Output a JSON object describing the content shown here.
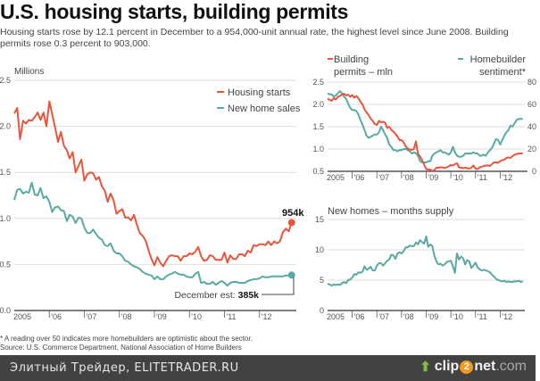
{
  "title": "U.S. housing starts, building permits",
  "subtitle": "Housing starts rose by 12.1 percent in December to a 954,000-unit annual rate, the highest level since June 2008. Building permits rose 0.3 percent to 903,000.",
  "footnote": {
    "line1": "* A reading over 50 indicates more homebuilders are optimistic about the sector.",
    "line2": "Source: U.S. Commerce Department, National Association of Home Builders"
  },
  "watermark": {
    "text": "Элитный Трейдер, ELITETRADER.RU",
    "logo_pre": "clip",
    "logo_num": "2",
    "logo_post": "net",
    "logo_tld": ".com",
    "logo_icon": "up-arrow-icon"
  },
  "colors": {
    "red": "#e8553c",
    "teal": "#5aa9a3"
  },
  "chart_data": [
    {
      "id": "main",
      "type": "line",
      "ylabel": "Millions",
      "ylim": [
        0,
        2.5
      ],
      "yticks": [
        "0.0",
        "0.5",
        "1.0",
        "1.5",
        "2.0",
        "2.5"
      ],
      "xticks": [
        "2005",
        "'06",
        "'07",
        "'08",
        "'09",
        "'10",
        "'11",
        "'12"
      ],
      "xrange": [
        2005.0,
        2013.0
      ],
      "legend": [
        "Housing starts",
        "New home sales"
      ],
      "legend_position": "top-right",
      "annotations": {
        "end_red": "954k",
        "end_teal_prefix": "December est: ",
        "end_teal_value": "385k"
      },
      "series": [
        {
          "name": "Housing starts",
          "color": "#e8553c",
          "values": [
            2.14,
            2.2,
            1.86,
            2.06,
            2.03,
            2.07,
            2.06,
            2.1,
            2.15,
            2.07,
            2.15,
            2.0,
            2.27,
            2.13,
            1.98,
            1.83,
            1.94,
            1.79,
            1.74,
            1.65,
            1.72,
            1.5,
            1.57,
            1.64,
            1.41,
            1.48,
            1.5,
            1.49,
            1.42,
            1.45,
            1.35,
            1.3,
            1.18,
            1.27,
            1.2,
            1.05,
            1.08,
            1.1,
            1.01,
            1.01,
            0.98,
            1.04,
            0.93,
            0.84,
            0.81,
            0.76,
            0.65,
            0.56,
            0.49,
            0.58,
            0.52,
            0.48,
            0.54,
            0.59,
            0.6,
            0.59,
            0.59,
            0.54,
            0.59,
            0.59,
            0.62,
            0.61,
            0.64,
            0.69,
            0.59,
            0.54,
            0.55,
            0.6,
            0.59,
            0.55,
            0.55,
            0.55,
            0.63,
            0.52,
            0.6,
            0.56,
            0.56,
            0.61,
            0.61,
            0.59,
            0.65,
            0.63,
            0.71,
            0.7,
            0.72,
            0.72,
            0.71,
            0.75,
            0.71,
            0.75,
            0.73,
            0.75,
            0.85,
            0.89,
            0.86,
            0.954
          ]
        },
        {
          "name": "New home sales",
          "color": "#5aa9a3",
          "values": [
            1.2,
            1.31,
            1.32,
            1.27,
            1.29,
            1.28,
            1.39,
            1.26,
            1.25,
            1.33,
            1.22,
            1.24,
            1.18,
            1.07,
            1.12,
            1.13,
            1.09,
            1.08,
            0.97,
            1.04,
            1.02,
            0.95,
            1.01,
            1.0,
            0.9,
            0.84,
            0.84,
            0.88,
            0.83,
            0.79,
            0.77,
            0.71,
            0.7,
            0.73,
            0.65,
            0.62,
            0.62,
            0.59,
            0.54,
            0.53,
            0.5,
            0.48,
            0.47,
            0.45,
            0.42,
            0.4,
            0.39,
            0.38,
            0.34,
            0.37,
            0.34,
            0.34,
            0.37,
            0.39,
            0.4,
            0.42,
            0.4,
            0.39,
            0.39,
            0.37,
            0.36,
            0.36,
            0.4,
            0.42,
            0.3,
            0.31,
            0.29,
            0.29,
            0.31,
            0.28,
            0.3,
            0.32,
            0.3,
            0.27,
            0.3,
            0.31,
            0.31,
            0.3,
            0.3,
            0.3,
            0.32,
            0.33,
            0.34,
            0.34,
            0.35,
            0.37,
            0.36,
            0.36,
            0.37,
            0.37,
            0.37,
            0.37,
            0.37,
            0.38,
            0.38,
            0.385
          ]
        }
      ]
    },
    {
      "id": "permits",
      "type": "line",
      "ylim_left": [
        0.5,
        2.5
      ],
      "ylim_right": [
        0,
        80
      ],
      "yticks_left": [
        "0.5",
        "1.0",
        "1.5",
        "2.0",
        "2.5"
      ],
      "yticks_right": [
        "0",
        "20",
        "40",
        "60",
        "80"
      ],
      "xticks": [
        "2005",
        "'06",
        "'07",
        "'08",
        "'09",
        "'10",
        "'11",
        "'12"
      ],
      "xrange": [
        2005.0,
        2013.0
      ],
      "legend": [
        "Building permits – mln",
        "Homebuilder sentiment*"
      ],
      "legend_position": "top",
      "series": [
        {
          "name": "Building permits – mln",
          "axis": "left",
          "color": "#e8553c",
          "values": [
            2.13,
            2.1,
            2.08,
            2.14,
            2.11,
            2.17,
            2.19,
            2.22,
            2.24,
            2.2,
            2.22,
            2.17,
            2.21,
            2.15,
            2.19,
            2.14,
            2.06,
            2.0,
            1.89,
            1.82,
            1.76,
            1.68,
            1.63,
            1.56,
            1.54,
            1.63,
            1.6,
            1.61,
            1.59,
            1.47,
            1.5,
            1.43,
            1.39,
            1.34,
            1.28,
            1.2,
            1.2,
            1.15,
            1.06,
            1.01,
            0.99,
            0.98,
            1.0,
            1.17,
            0.89,
            0.83,
            0.75,
            0.65,
            0.55,
            0.54,
            0.54,
            0.5,
            0.53,
            0.58,
            0.58,
            0.59,
            0.59,
            0.57,
            0.59,
            0.61,
            0.64,
            0.63,
            0.66,
            0.68,
            0.59,
            0.58,
            0.57,
            0.58,
            0.57,
            0.56,
            0.58,
            0.63,
            0.56,
            0.55,
            0.59,
            0.6,
            0.62,
            0.63,
            0.63,
            0.62,
            0.66,
            0.7,
            0.7,
            0.69,
            0.73,
            0.75,
            0.76,
            0.8,
            0.81,
            0.8,
            0.84,
            0.87,
            0.89,
            0.9,
            0.9,
            0.903
          ]
        },
        {
          "name": "Homebuilder sentiment*",
          "axis": "right",
          "color": "#5aa9a3",
          "values": [
            70,
            69,
            69,
            67,
            68,
            70,
            72,
            70,
            67,
            65,
            61,
            57,
            55,
            55,
            54,
            51,
            46,
            42,
            37,
            32,
            30,
            31,
            32,
            33,
            33,
            35,
            40,
            37,
            33,
            30,
            24,
            22,
            19,
            19,
            18,
            19,
            19,
            20,
            20,
            19,
            18,
            16,
            17,
            16,
            14,
            9,
            8,
            8,
            8,
            9,
            9,
            14,
            16,
            17,
            18,
            19,
            17,
            17,
            16,
            15,
            17,
            22,
            17,
            14,
            13,
            13,
            14,
            16,
            16,
            16,
            16,
            17,
            16,
            16,
            14,
            14,
            15,
            14,
            17,
            19,
            21,
            25,
            29,
            28,
            24,
            28,
            32,
            35,
            37,
            41,
            40,
            43,
            46,
            47,
            47,
            47
          ]
        }
      ]
    },
    {
      "id": "supply",
      "type": "line",
      "title": "New homes – months supply",
      "ylim": [
        0,
        15
      ],
      "yticks": [
        "0",
        "5",
        "10",
        "15"
      ],
      "xticks": [
        "2005",
        "'06",
        "'07",
        "'08",
        "'09",
        "'10",
        "'11",
        "'12"
      ],
      "xrange": [
        2005.0,
        2013.0
      ],
      "series": [
        {
          "name": "New homes – months supply",
          "color": "#5aa9a3",
          "values": [
            4.4,
            4.3,
            4.1,
            4.3,
            4.2,
            4.3,
            4.2,
            4.5,
            4.7,
            4.5,
            5.0,
            5.1,
            5.4,
            6.0,
            5.9,
            6.3,
            6.2,
            6.4,
            7.3,
            6.7,
            6.9,
            7.2,
            6.6,
            6.6,
            7.4,
            7.8,
            7.8,
            7.4,
            7.8,
            8.2,
            8.4,
            9.2,
            9.1,
            8.5,
            9.4,
            9.6,
            9.4,
            9.8,
            10.4,
            10.4,
            10.7,
            10.6,
            10.6,
            11.2,
            10.9,
            11.6,
            11.3,
            11.0,
            12.2,
            10.5,
            10.9,
            10.6,
            9.0,
            8.1,
            7.6,
            7.7,
            7.4,
            7.6,
            8.0,
            8.1,
            8.2,
            7.3,
            6.2,
            9.4,
            8.4,
            8.9,
            8.6,
            7.6,
            8.3,
            8.1,
            7.0,
            7.4,
            7.9,
            7.1,
            6.8,
            6.6,
            6.7,
            6.6,
            6.5,
            6.3,
            5.9,
            5.6,
            5.2,
            5.0,
            4.9,
            4.8,
            4.9,
            4.7,
            4.8,
            4.7,
            4.7,
            4.8,
            4.8,
            4.9,
            4.7,
            4.8
          ]
        }
      ]
    }
  ]
}
